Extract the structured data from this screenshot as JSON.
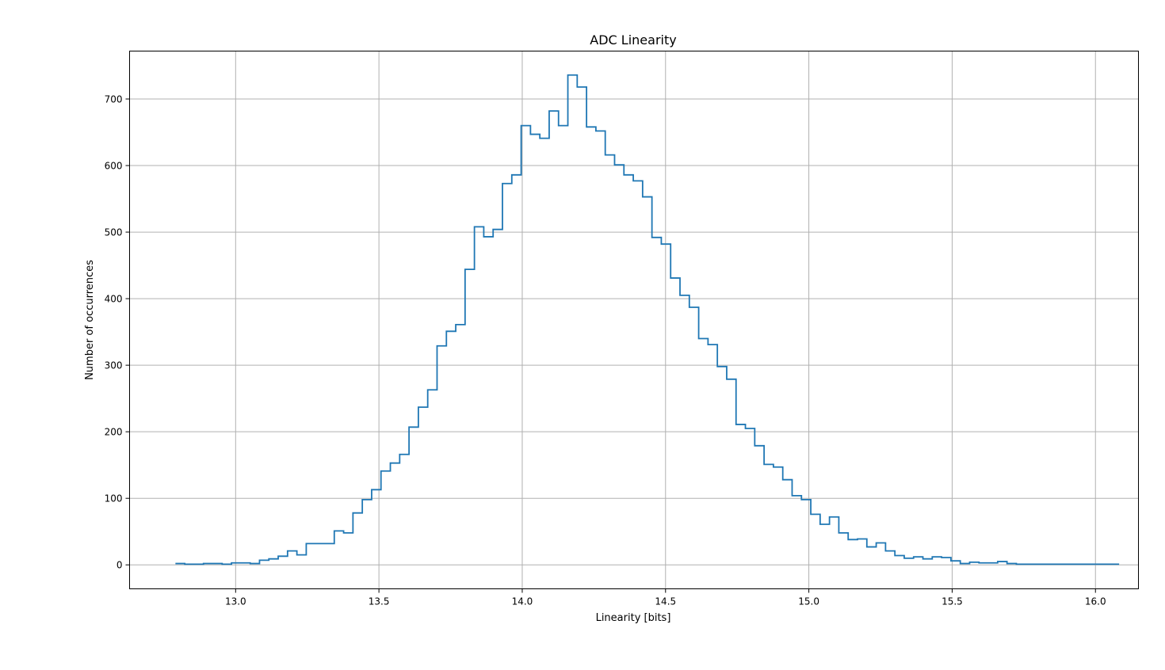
{
  "chart_data": {
    "type": "histogram",
    "title": "ADC Linearity",
    "xlabel": "Linearity [bits]",
    "ylabel": "Number of occurrences",
    "xlim": [
      12.63,
      16.15
    ],
    "ylim": [
      -36,
      772
    ],
    "grid": true,
    "x_ticks": [
      13.0,
      13.5,
      14.0,
      14.5,
      15.0,
      15.5,
      16.0
    ],
    "x_tick_labels": [
      "13.0",
      "13.5",
      "14.0",
      "14.5",
      "15.0",
      "15.5",
      "16.0"
    ],
    "y_ticks": [
      0,
      100,
      200,
      300,
      400,
      500,
      600,
      700
    ],
    "y_tick_labels": [
      "0",
      "100",
      "200",
      "300",
      "400",
      "500",
      "600",
      "700"
    ],
    "bin_start": 12.79,
    "bin_width": 0.0326,
    "counts": [
      2,
      1,
      1,
      2,
      2,
      1,
      3,
      3,
      2,
      7,
      9,
      13,
      21,
      15,
      32,
      32,
      32,
      51,
      48,
      78,
      98,
      113,
      141,
      153,
      166,
      207,
      237,
      263,
      329,
      351,
      361,
      444,
      508,
      493,
      504,
      573,
      586,
      660,
      647,
      641,
      682,
      660,
      736,
      718,
      658,
      652,
      616,
      601,
      586,
      577,
      553,
      492,
      482,
      431,
      405,
      387,
      340,
      331,
      298,
      279,
      211,
      205,
      179,
      151,
      147,
      128,
      104,
      98,
      76,
      61,
      72,
      48,
      38,
      39,
      27,
      33,
      21,
      14,
      10,
      12,
      9,
      12,
      11,
      6,
      2,
      4,
      3,
      3,
      5,
      2,
      1,
      1,
      1,
      1,
      1,
      1,
      1,
      1,
      1,
      1,
      1
    ],
    "color": "#1f77b4",
    "grid_color": "#b0b0b0"
  }
}
